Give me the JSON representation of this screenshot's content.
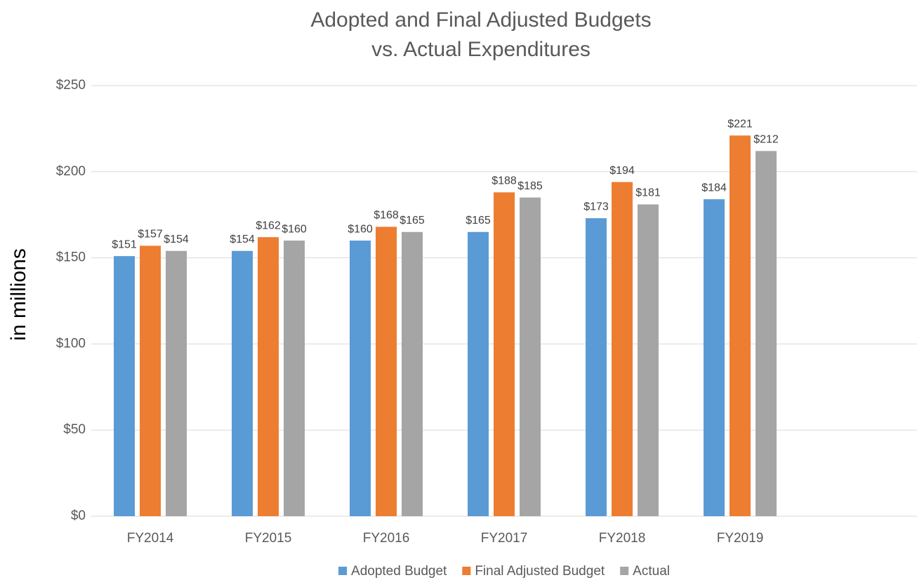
{
  "chart_data": {
    "type": "bar",
    "title": [
      "Adopted and Final Adjusted Budgets",
      "vs. Actual Expenditures"
    ],
    "y_label": "in millions",
    "categories": [
      "FY2014",
      "FY2015",
      "FY2016",
      "FY2017",
      "FY2018",
      "FY2019",
      null
    ],
    "series": [
      {
        "name": "Adopted Budget",
        "color": "#5b9bd5",
        "values": [
          151,
          154,
          160,
          165,
          173,
          184,
          null
        ],
        "value_labels": [
          "$151",
          "$154",
          "$160",
          "$165",
          "$173",
          "$184",
          null
        ]
      },
      {
        "name": "Final Adjusted Budget",
        "color": "#ed7d31",
        "values": [
          157,
          162,
          168,
          188,
          194,
          221,
          null
        ],
        "value_labels": [
          "$157",
          "$162",
          "$168",
          "$188",
          "$194",
          "$221",
          null
        ]
      },
      {
        "name": "Actual",
        "color": "#a5a5a5",
        "values": [
          154,
          160,
          165,
          185,
          181,
          212,
          null
        ],
        "value_labels": [
          "$154",
          "$160",
          "$165",
          "$185",
          "$181",
          "$212",
          null
        ]
      }
    ],
    "ylim": [
      0,
      250
    ],
    "yticks": [
      {
        "value": 0,
        "label": "$0"
      },
      {
        "value": 50,
        "label": "$50"
      },
      {
        "value": 100,
        "label": "$100"
      },
      {
        "value": 150,
        "label": "$150"
      },
      {
        "value": 200,
        "label": "$200"
      },
      {
        "value": 250,
        "label": "$250"
      }
    ],
    "grid": true,
    "legend": "bottom"
  }
}
